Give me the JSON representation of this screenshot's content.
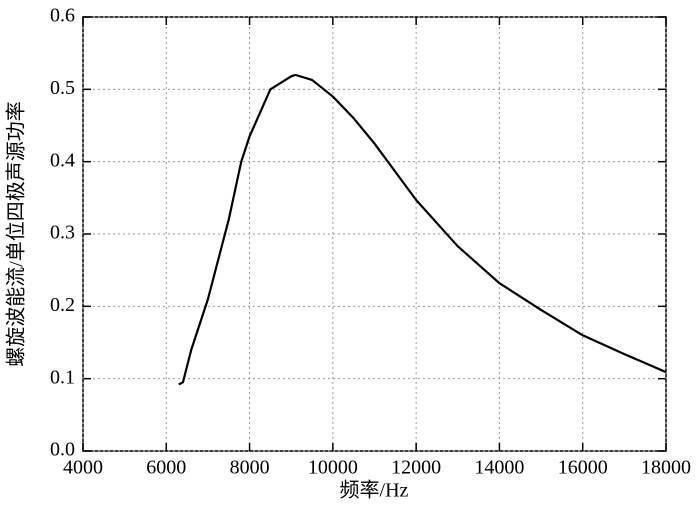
{
  "chart_data": {
    "type": "line",
    "x_label": "频率/Hz",
    "y_label": "螺旋波能流/单位四极声源功率",
    "x": [
      6300,
      6400,
      6600,
      7000,
      7500,
      7800,
      8000,
      8500,
      9000,
      9100,
      9500,
      10000,
      10500,
      11000,
      12000,
      13000,
      14000,
      15000,
      16000,
      17000,
      18000
    ],
    "series": [
      {
        "color": "#000000",
        "values": [
          0.092,
          0.095,
          0.14,
          0.21,
          0.32,
          0.4,
          0.435,
          0.5,
          0.518,
          0.52,
          0.513,
          0.49,
          0.46,
          0.425,
          0.347,
          0.283,
          0.232,
          0.195,
          0.16,
          0.134,
          0.109
        ]
      }
    ],
    "xlim": [
      4000,
      18000
    ],
    "xticks": [
      4000,
      6000,
      8000,
      10000,
      12000,
      14000,
      16000,
      18000
    ],
    "ylim": [
      0,
      0.6
    ],
    "yticks": [
      {
        "value": 0,
        "label": "0.0"
      },
      0.1,
      0.2,
      0.3,
      0.4,
      0.5,
      0.6
    ],
    "grid": true
  }
}
